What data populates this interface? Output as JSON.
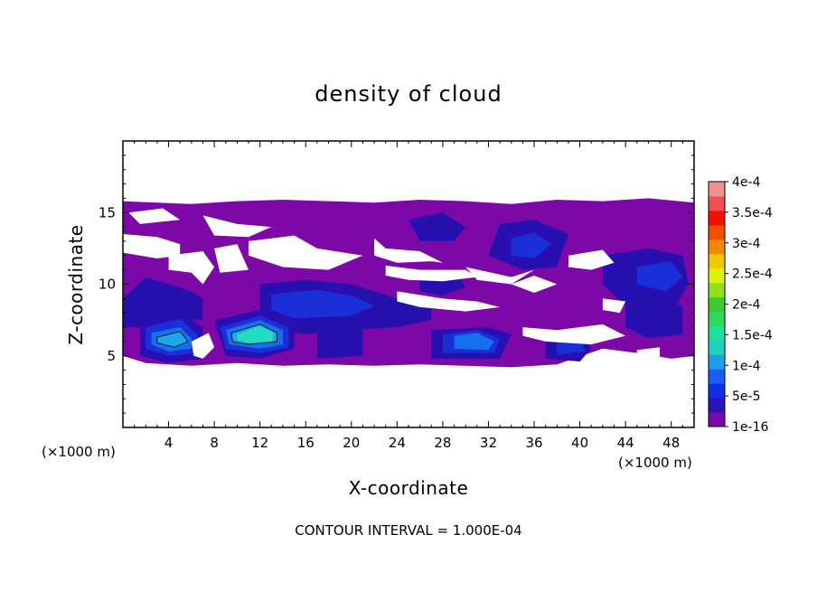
{
  "chart_data": {
    "type": "heatmap",
    "title": "density of cloud",
    "xlabel": "X-coordinate",
    "ylabel": "Z-coordinate",
    "x_unit": "(×1000 m)",
    "z_unit": "(×1000 m)",
    "xlim": [
      0,
      50
    ],
    "ylim": [
      0,
      20
    ],
    "x_ticks": [
      4,
      8,
      12,
      16,
      20,
      24,
      28,
      32,
      36,
      40,
      44,
      48
    ],
    "x_tick_labels": [
      "4",
      "8",
      "12",
      "16",
      "20",
      "24",
      "28",
      "32",
      "36",
      "40",
      "44",
      "48"
    ],
    "y_ticks": [
      5,
      10,
      15
    ],
    "y_tick_labels": [
      "5",
      "10",
      "15"
    ],
    "colorbar": {
      "labels": [
        "1e-16",
        "5e-5",
        "1e-4",
        "1.5e-4",
        "2e-4",
        "2.5e-4",
        "3e-4",
        "3.5e-4",
        "4e-4"
      ],
      "colors": [
        "#7d08a8",
        "#2b14b5",
        "#1030e0",
        "#1a5ef2",
        "#1e9ee8",
        "#20d0c0",
        "#20e0a0",
        "#30d860",
        "#40c830",
        "#90e020",
        "#e0f010",
        "#f0c800",
        "#f08a00",
        "#f05000",
        "#f01000",
        "#f05050",
        "#f09090"
      ]
    },
    "note": "CONTOUR INTERVAL = 1.000E-04",
    "regions": [
      {
        "level": 0,
        "points": [
          [
            0,
            15.8
          ],
          [
            3,
            15.7
          ],
          [
            6,
            15.6
          ],
          [
            10,
            15.8
          ],
          [
            14,
            15.9
          ],
          [
            18,
            15.8
          ],
          [
            22,
            15.7
          ],
          [
            26,
            15.9
          ],
          [
            30,
            15.8
          ],
          [
            34,
            15.6
          ],
          [
            38,
            15.9
          ],
          [
            42,
            15.8
          ],
          [
            46,
            16
          ],
          [
            50,
            15.7
          ],
          [
            50,
            5
          ],
          [
            48,
            4.8
          ],
          [
            45,
            5.2
          ],
          [
            42,
            5.5
          ],
          [
            38,
            4.4
          ],
          [
            34,
            4.2
          ],
          [
            30,
            4.3
          ],
          [
            26,
            4.4
          ],
          [
            22,
            4.3
          ],
          [
            18,
            4.4
          ],
          [
            14,
            4.3
          ],
          [
            10,
            4.5
          ],
          [
            6,
            4.3
          ],
          [
            2,
            4.5
          ],
          [
            0,
            5
          ]
        ]
      },
      {
        "level": 1,
        "points": [
          [
            0,
            9
          ],
          [
            2,
            10.5
          ],
          [
            4,
            10
          ],
          [
            6,
            9.5
          ],
          [
            7,
            9
          ],
          [
            7,
            7.5
          ],
          [
            4,
            7.5
          ],
          [
            2,
            7
          ],
          [
            0,
            7
          ]
        ]
      },
      {
        "level": 1,
        "points": [
          [
            12,
            10
          ],
          [
            16,
            10.3
          ],
          [
            20,
            10
          ],
          [
            24,
            9
          ],
          [
            27,
            8.5
          ],
          [
            27,
            7.5
          ],
          [
            24,
            7
          ],
          [
            20,
            6.8
          ],
          [
            16,
            6.5
          ],
          [
            12,
            7
          ]
        ]
      },
      {
        "level": 1,
        "points": [
          [
            25,
            14.5
          ],
          [
            28,
            15
          ],
          [
            30,
            14
          ],
          [
            29,
            13
          ],
          [
            26,
            13
          ]
        ]
      },
      {
        "level": 1,
        "points": [
          [
            33,
            14.2
          ],
          [
            36,
            14.5
          ],
          [
            39,
            13.5
          ],
          [
            38,
            11.2
          ],
          [
            35,
            11
          ],
          [
            32,
            12
          ]
        ]
      },
      {
        "level": 1,
        "points": [
          [
            42,
            12
          ],
          [
            46,
            12.5
          ],
          [
            49,
            12
          ],
          [
            49.5,
            10
          ],
          [
            48,
            8
          ],
          [
            44,
            8.5
          ],
          [
            42,
            10
          ]
        ]
      },
      {
        "level": 1,
        "points": [
          [
            26,
            10.5
          ],
          [
            29,
            11
          ],
          [
            30,
            9.8
          ],
          [
            28,
            9.2
          ],
          [
            26,
            9.5
          ]
        ]
      },
      {
        "level": 1,
        "points": [
          [
            37,
            6.5
          ],
          [
            40,
            6.8
          ],
          [
            41,
            5.5
          ],
          [
            40,
            4.6
          ],
          [
            37,
            4.8
          ]
        ]
      },
      {
        "level": 1,
        "points": [
          [
            1.5,
            7.5
          ],
          [
            5,
            8
          ],
          [
            7,
            7
          ],
          [
            7,
            4.8
          ],
          [
            4,
            4.5
          ],
          [
            1.5,
            5
          ]
        ]
      },
      {
        "level": 1,
        "points": [
          [
            8,
            7.5
          ],
          [
            12,
            8.2
          ],
          [
            15,
            7.5
          ],
          [
            15,
            5.5
          ],
          [
            12,
            4.8
          ],
          [
            9,
            5
          ]
        ]
      },
      {
        "level": 1,
        "points": [
          [
            17,
            6.8
          ],
          [
            21,
            7
          ],
          [
            21,
            5
          ],
          [
            17,
            4.8
          ]
        ]
      },
      {
        "level": 1,
        "points": [
          [
            27,
            6.8
          ],
          [
            32,
            7
          ],
          [
            34,
            6.5
          ],
          [
            33,
            4.8
          ],
          [
            27,
            4.8
          ]
        ]
      },
      {
        "level": 1,
        "points": [
          [
            44,
            8.5
          ],
          [
            47,
            9
          ],
          [
            49,
            8.5
          ],
          [
            49,
            6.5
          ],
          [
            46,
            6.2
          ],
          [
            44,
            7
          ]
        ]
      },
      {
        "level": 2,
        "points": [
          [
            13,
            9.3
          ],
          [
            17,
            9.6
          ],
          [
            20,
            9.2
          ],
          [
            22,
            8.5
          ],
          [
            20,
            7.8
          ],
          [
            15,
            7.6
          ],
          [
            13,
            8.2
          ]
        ]
      },
      {
        "level": 2,
        "points": [
          [
            34,
            13.2
          ],
          [
            36,
            13.6
          ],
          [
            37.5,
            12.8
          ],
          [
            36,
            11.8
          ],
          [
            34,
            12
          ]
        ]
      },
      {
        "level": 2,
        "points": [
          [
            45,
            11.2
          ],
          [
            48,
            11.6
          ],
          [
            49,
            10.5
          ],
          [
            47.5,
            9.5
          ],
          [
            45,
            10
          ]
        ]
      },
      {
        "level": 2,
        "points": [
          [
            2,
            7
          ],
          [
            5,
            7.6
          ],
          [
            6.5,
            6.5
          ],
          [
            6.5,
            5.2
          ],
          [
            4,
            5
          ],
          [
            2,
            5.5
          ]
        ]
      },
      {
        "level": 2,
        "points": [
          [
            8.5,
            7
          ],
          [
            12,
            7.8
          ],
          [
            14.5,
            7
          ],
          [
            14.5,
            5.6
          ],
          [
            12,
            5.2
          ],
          [
            9,
            5.5
          ]
        ]
      },
      {
        "level": 2,
        "points": [
          [
            28,
            6.5
          ],
          [
            31,
            6.8
          ],
          [
            33,
            6.2
          ],
          [
            32.5,
            5.2
          ],
          [
            28,
            5.2
          ]
        ]
      },
      {
        "level": 2,
        "points": [
          [
            38,
            6
          ],
          [
            40,
            6.2
          ],
          [
            40.5,
            5.3
          ],
          [
            38,
            5.1
          ]
        ]
      },
      {
        "level": 3,
        "points": [
          [
            2.5,
            6.6
          ],
          [
            5,
            7
          ],
          [
            6,
            6.2
          ],
          [
            6,
            5.5
          ],
          [
            4,
            5.3
          ],
          [
            2.5,
            5.8
          ]
        ]
      },
      {
        "level": 3,
        "points": [
          [
            9,
            6.8
          ],
          [
            12,
            7.5
          ],
          [
            14,
            6.8
          ],
          [
            14,
            5.8
          ],
          [
            12,
            5.5
          ],
          [
            9.3,
            5.8
          ]
        ]
      },
      {
        "level": 3,
        "points": [
          [
            29,
            6.4
          ],
          [
            31,
            6.6
          ],
          [
            32.5,
            6
          ],
          [
            32,
            5.4
          ],
          [
            29,
            5.5
          ]
        ]
      },
      {
        "level": 4,
        "points": [
          [
            3,
            6.3
          ],
          [
            5,
            6.7
          ],
          [
            5.7,
            6
          ],
          [
            4.5,
            5.6
          ],
          [
            3,
            5.9
          ]
        ]
      },
      {
        "level": 4,
        "points": [
          [
            9.5,
            6.6
          ],
          [
            12,
            7.2
          ],
          [
            13.5,
            6.6
          ],
          [
            13.5,
            6
          ],
          [
            11,
            5.8
          ],
          [
            9.6,
            6
          ]
        ]
      },
      {
        "level": 5,
        "points": [
          [
            10,
            6.5
          ],
          [
            12,
            7.1
          ],
          [
            13.2,
            6.6
          ],
          [
            13.1,
            6
          ],
          [
            11,
            5.9
          ],
          [
            10,
            6.1
          ]
        ]
      }
    ],
    "gaps": [
      [
        [
          0.5,
          15
        ],
        [
          1.5,
          14.2
        ],
        [
          5,
          14.5
        ],
        [
          3.5,
          15.3
        ]
      ],
      [
        [
          0,
          13.5
        ],
        [
          3,
          13.3
        ],
        [
          5,
          12.8
        ],
        [
          5,
          12
        ],
        [
          3,
          11.8
        ],
        [
          0,
          12.2
        ]
      ],
      [
        [
          4,
          12
        ],
        [
          7,
          12.3
        ],
        [
          8,
          11.2
        ],
        [
          7,
          10
        ],
        [
          6,
          10.8
        ],
        [
          4,
          11
        ]
      ],
      [
        [
          8,
          12.5
        ],
        [
          10,
          12.8
        ],
        [
          11,
          11
        ],
        [
          8.5,
          10.8
        ]
      ],
      [
        [
          7,
          14.8
        ],
        [
          10,
          14.2
        ],
        [
          13,
          14
        ],
        [
          11,
          13.3
        ],
        [
          8,
          13.4
        ]
      ],
      [
        [
          11,
          13
        ],
        [
          15,
          13.4
        ],
        [
          17,
          12.5
        ],
        [
          21,
          12
        ],
        [
          18,
          11
        ],
        [
          14,
          11.2
        ],
        [
          11,
          12
        ]
      ],
      [
        [
          22,
          13.2
        ],
        [
          23,
          12.5
        ],
        [
          26,
          12.3
        ],
        [
          28,
          11.5
        ],
        [
          27,
          11.6
        ],
        [
          24,
          11.5
        ],
        [
          22,
          12
        ]
      ],
      [
        [
          23,
          11.3
        ],
        [
          26,
          11
        ],
        [
          30,
          11
        ],
        [
          31,
          10.5
        ],
        [
          28,
          10.2
        ],
        [
          25,
          10.3
        ],
        [
          23,
          10.6
        ]
      ],
      [
        [
          24,
          9.5
        ],
        [
          28,
          9
        ],
        [
          31,
          8.8
        ],
        [
          33,
          8.4
        ],
        [
          30,
          8.1
        ],
        [
          26,
          8.4
        ],
        [
          24,
          8.8
        ]
      ],
      [
        [
          30,
          11.2
        ],
        [
          34,
          10.5
        ],
        [
          36,
          11
        ],
        [
          34,
          10
        ],
        [
          31,
          10.3
        ]
      ],
      [
        [
          34,
          10
        ],
        [
          36,
          10.6
        ],
        [
          38,
          10
        ],
        [
          36,
          9.4
        ]
      ],
      [
        [
          39,
          12
        ],
        [
          42,
          12.4
        ],
        [
          43,
          11.5
        ],
        [
          41,
          11
        ],
        [
          39,
          11.2
        ]
      ],
      [
        [
          35,
          7
        ],
        [
          38,
          6.8
        ],
        [
          42,
          7.2
        ],
        [
          44,
          6.4
        ],
        [
          41,
          5.8
        ],
        [
          37,
          6
        ],
        [
          35,
          6.4
        ]
      ],
      [
        [
          42,
          9
        ],
        [
          44,
          8.8
        ],
        [
          43.5,
          8
        ],
        [
          42,
          8.2
        ]
      ],
      [
        [
          45,
          5.4
        ],
        [
          47,
          5.6
        ],
        [
          47,
          4.8
        ],
        [
          45,
          4.8
        ]
      ],
      [
        [
          6,
          6
        ],
        [
          7.5,
          6.6
        ],
        [
          8,
          5.6
        ],
        [
          7,
          4.8
        ],
        [
          6.2,
          5
        ]
      ],
      [
        [
          40,
          4.5
        ],
        [
          44,
          5
        ],
        [
          48,
          4.5
        ],
        [
          50,
          4.5
        ],
        [
          50,
          4
        ],
        [
          40,
          4
        ]
      ]
    ]
  }
}
